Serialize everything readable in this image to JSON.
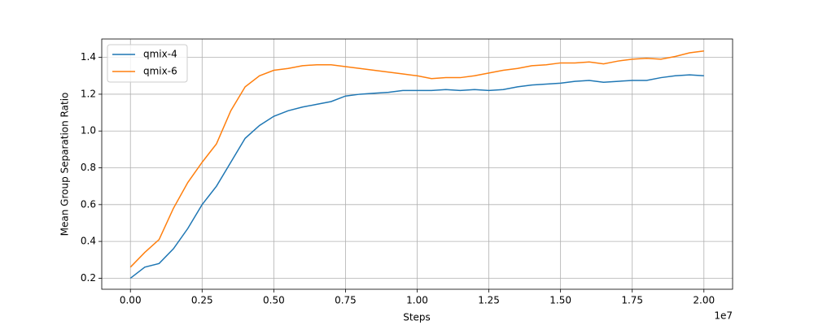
{
  "chart_data": {
    "type": "line",
    "x_label": "Steps",
    "y_label": "Mean Group Separation Ratio",
    "x_offset_label": "1e7",
    "x": [
      0,
      500000,
      1000000,
      1500000,
      2000000,
      2500000,
      3000000,
      3500000,
      4000000,
      4500000,
      5000000,
      5500000,
      6000000,
      6500000,
      7000000,
      7500000,
      8000000,
      8500000,
      9000000,
      9500000,
      10000000,
      10500000,
      11000000,
      11500000,
      12000000,
      12500000,
      13000000,
      13500000,
      14000000,
      14500000,
      15000000,
      15500000,
      16000000,
      16500000,
      17000000,
      17500000,
      18000000,
      18500000,
      19000000,
      19500000,
      20000000
    ],
    "series": [
      {
        "name": "qmix-4",
        "color": "#1f77b4",
        "values": [
          0.2,
          0.26,
          0.28,
          0.36,
          0.47,
          0.6,
          0.7,
          0.83,
          0.96,
          1.03,
          1.08,
          1.11,
          1.13,
          1.145,
          1.16,
          1.19,
          1.2,
          1.205,
          1.21,
          1.22,
          1.22,
          1.22,
          1.225,
          1.22,
          1.225,
          1.22,
          1.225,
          1.24,
          1.25,
          1.255,
          1.26,
          1.27,
          1.275,
          1.265,
          1.27,
          1.275,
          1.275,
          1.29,
          1.3,
          1.305,
          1.3
        ]
      },
      {
        "name": "qmix-6",
        "color": "#ff7f0e",
        "values": [
          0.26,
          0.34,
          0.41,
          0.58,
          0.72,
          0.83,
          0.93,
          1.11,
          1.24,
          1.3,
          1.33,
          1.34,
          1.355,
          1.36,
          1.36,
          1.35,
          1.34,
          1.33,
          1.32,
          1.31,
          1.3,
          1.285,
          1.29,
          1.29,
          1.3,
          1.315,
          1.33,
          1.34,
          1.355,
          1.36,
          1.37,
          1.37,
          1.375,
          1.365,
          1.38,
          1.39,
          1.395,
          1.39,
          1.405,
          1.425,
          1.435
        ]
      }
    ],
    "xlim": [
      -1000000,
      21000000
    ],
    "xticks": [
      {
        "value": 0,
        "label": "0.00"
      },
      {
        "value": 2500000,
        "label": "0.25"
      },
      {
        "value": 5000000,
        "label": "0.50"
      },
      {
        "value": 7500000,
        "label": "0.75"
      },
      {
        "value": 10000000,
        "label": "1.00"
      },
      {
        "value": 12500000,
        "label": "1.25"
      },
      {
        "value": 15000000,
        "label": "1.50"
      },
      {
        "value": 17500000,
        "label": "1.75"
      },
      {
        "value": 20000000,
        "label": "2.00"
      }
    ],
    "ylim": [
      0.14,
      1.5
    ],
    "yticks": [
      0.2,
      0.4,
      0.6,
      0.8,
      {
        "value": 1,
        "label": "1.0"
      },
      1.2,
      1.4
    ],
    "grid": true,
    "legend": "upper-left"
  }
}
